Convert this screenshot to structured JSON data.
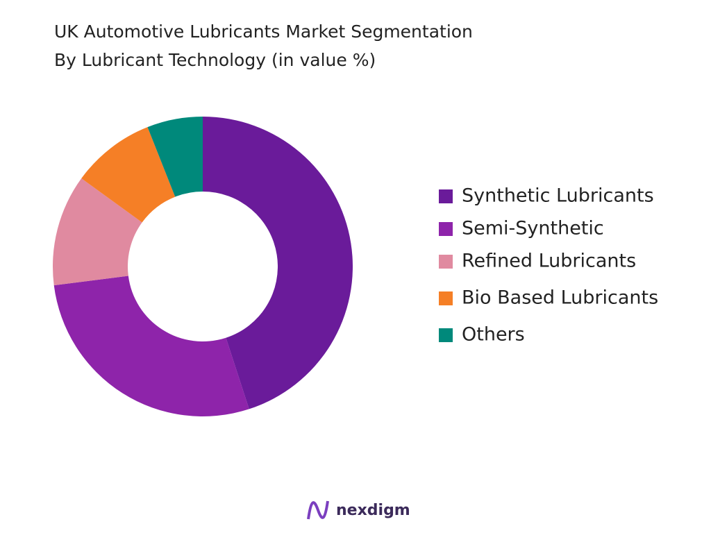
{
  "chart_data": {
    "type": "donut",
    "title": [
      "UK Automotive Lubricants Market Segmentation",
      "By Lubricant Technology (in value %)"
    ],
    "categories": [
      "Synthetic Lubricants",
      "Semi-Synthetic",
      "Refined Lubricants",
      "Bio Based Lubricants",
      "Others"
    ],
    "values": [
      45,
      28,
      12,
      9,
      6
    ],
    "colors": [
      "#6a1b9a",
      "#8e24aa",
      "#e08aa0",
      "#f57f26",
      "#00897b"
    ],
    "legend": "right"
  },
  "footer": {
    "brand": "nexdigm"
  }
}
